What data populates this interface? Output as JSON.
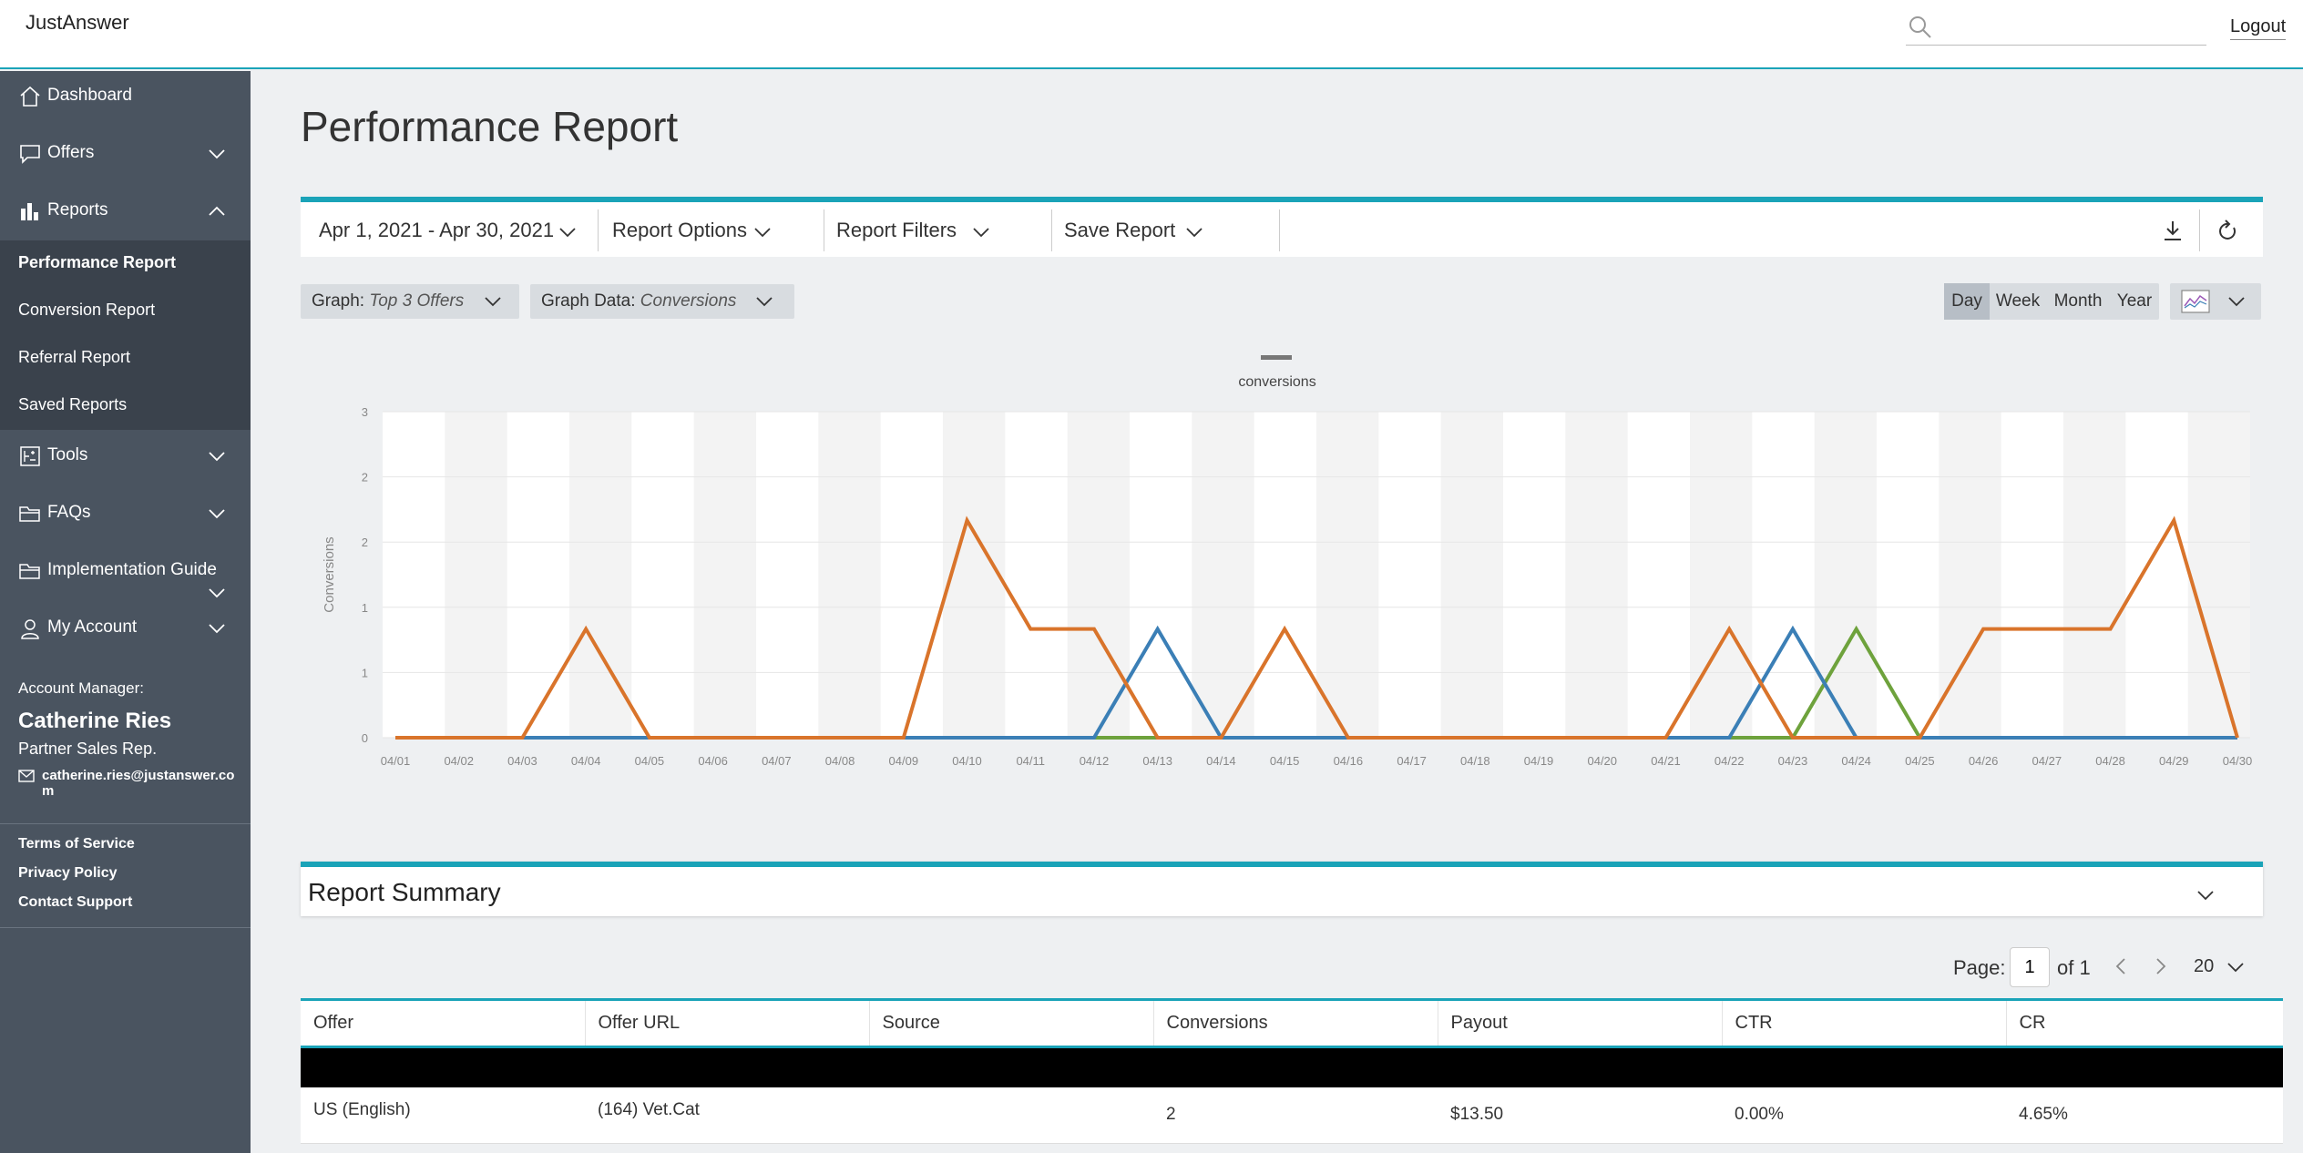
{
  "header": {
    "brand": "JustAnswer",
    "search_placeholder": "",
    "logout_label": "Logout"
  },
  "sidebar": {
    "items": [
      {
        "label": "Dashboard",
        "icon": "home-icon"
      },
      {
        "label": "Offers",
        "icon": "chat-icon"
      },
      {
        "label": "Reports",
        "icon": "bar-chart-icon"
      },
      {
        "label": "Tools",
        "icon": "tools-icon"
      },
      {
        "label": "FAQs",
        "icon": "folder-icon"
      },
      {
        "label": "Implementation Guide",
        "icon": "folder-icon"
      },
      {
        "label": "My Account",
        "icon": "user-icon"
      }
    ],
    "reports_sub": [
      {
        "label": "Performance Report",
        "active": true
      },
      {
        "label": "Conversion Report"
      },
      {
        "label": "Referral Report"
      },
      {
        "label": "Saved Reports"
      }
    ],
    "account": {
      "heading": "Account Manager:",
      "name": "Catherine Ries",
      "role": "Partner Sales Rep.",
      "email": "catherine.ries@justanswer.com"
    },
    "legal": [
      "Terms of Service",
      "Privacy Policy",
      "Contact Support"
    ]
  },
  "main": {
    "title": "Performance Report",
    "toolbar": {
      "date_range": "Apr 1, 2021 - Apr 30, 2021",
      "report_options": "Report Options",
      "report_filters": "Report Filters",
      "save_report": "Save Report"
    },
    "graph_select": {
      "label": "Graph:",
      "value": "Top 3 Offers"
    },
    "graph_data_select": {
      "label": "Graph Data:",
      "value": "Conversions"
    },
    "periods": [
      "Day",
      "Week",
      "Month",
      "Year"
    ],
    "active_period": "Day"
  },
  "chart_data": {
    "type": "line",
    "title": "",
    "legend": [
      "conversions"
    ],
    "legend_position": "top-center",
    "xlabel": "",
    "ylabel": "Conversions",
    "ylim": [
      0,
      3
    ],
    "y_tick_labels": [
      "0",
      "1",
      "1",
      "2",
      "2",
      "3"
    ],
    "categories": [
      "04/01",
      "04/02",
      "04/03",
      "04/04",
      "04/05",
      "04/06",
      "04/07",
      "04/08",
      "04/09",
      "04/10",
      "04/11",
      "04/12",
      "04/13",
      "04/14",
      "04/15",
      "04/16",
      "04/17",
      "04/18",
      "04/19",
      "04/20",
      "04/21",
      "04/22",
      "04/23",
      "04/24",
      "04/25",
      "04/26",
      "04/27",
      "04/28",
      "04/29",
      "04/30"
    ],
    "series": [
      {
        "color": "#d9742b",
        "values": [
          0,
          0,
          0,
          1,
          0,
          0,
          0,
          0,
          0,
          2,
          1,
          1,
          0,
          0,
          1,
          0,
          0,
          0,
          0,
          0,
          0,
          1,
          0,
          0,
          0,
          1,
          1,
          1,
          2,
          0
        ]
      },
      {
        "color": "#3b7fb6",
        "values": [
          0,
          0,
          0,
          0,
          0,
          0,
          0,
          0,
          0,
          0,
          0,
          0,
          1,
          0,
          0,
          0,
          0,
          0,
          0,
          0,
          0,
          0,
          1,
          0,
          0,
          0,
          0,
          0,
          0,
          0
        ]
      },
      {
        "color": "#6ea23c",
        "values": [
          0,
          0,
          0,
          0,
          0,
          0,
          0,
          0,
          0,
          0,
          0,
          0,
          0,
          0,
          0,
          0,
          0,
          0,
          0,
          0,
          0,
          0,
          0,
          1,
          0,
          0,
          0,
          0,
          0,
          0
        ]
      }
    ],
    "grid": true,
    "alternating_bands": true
  },
  "summary": {
    "title": "Report Summary",
    "page_label": "Page:",
    "page_value": "1",
    "of_label": "of 1",
    "page_size": "20",
    "columns": [
      "Offer",
      "Offer URL",
      "Source",
      "Conversions",
      "Payout",
      "CTR",
      "CR"
    ],
    "rows": [
      [
        "US (English)",
        "(164) Vet.Cat",
        "",
        "2",
        "$13.50",
        "0.00%",
        "4.65%"
      ]
    ]
  }
}
